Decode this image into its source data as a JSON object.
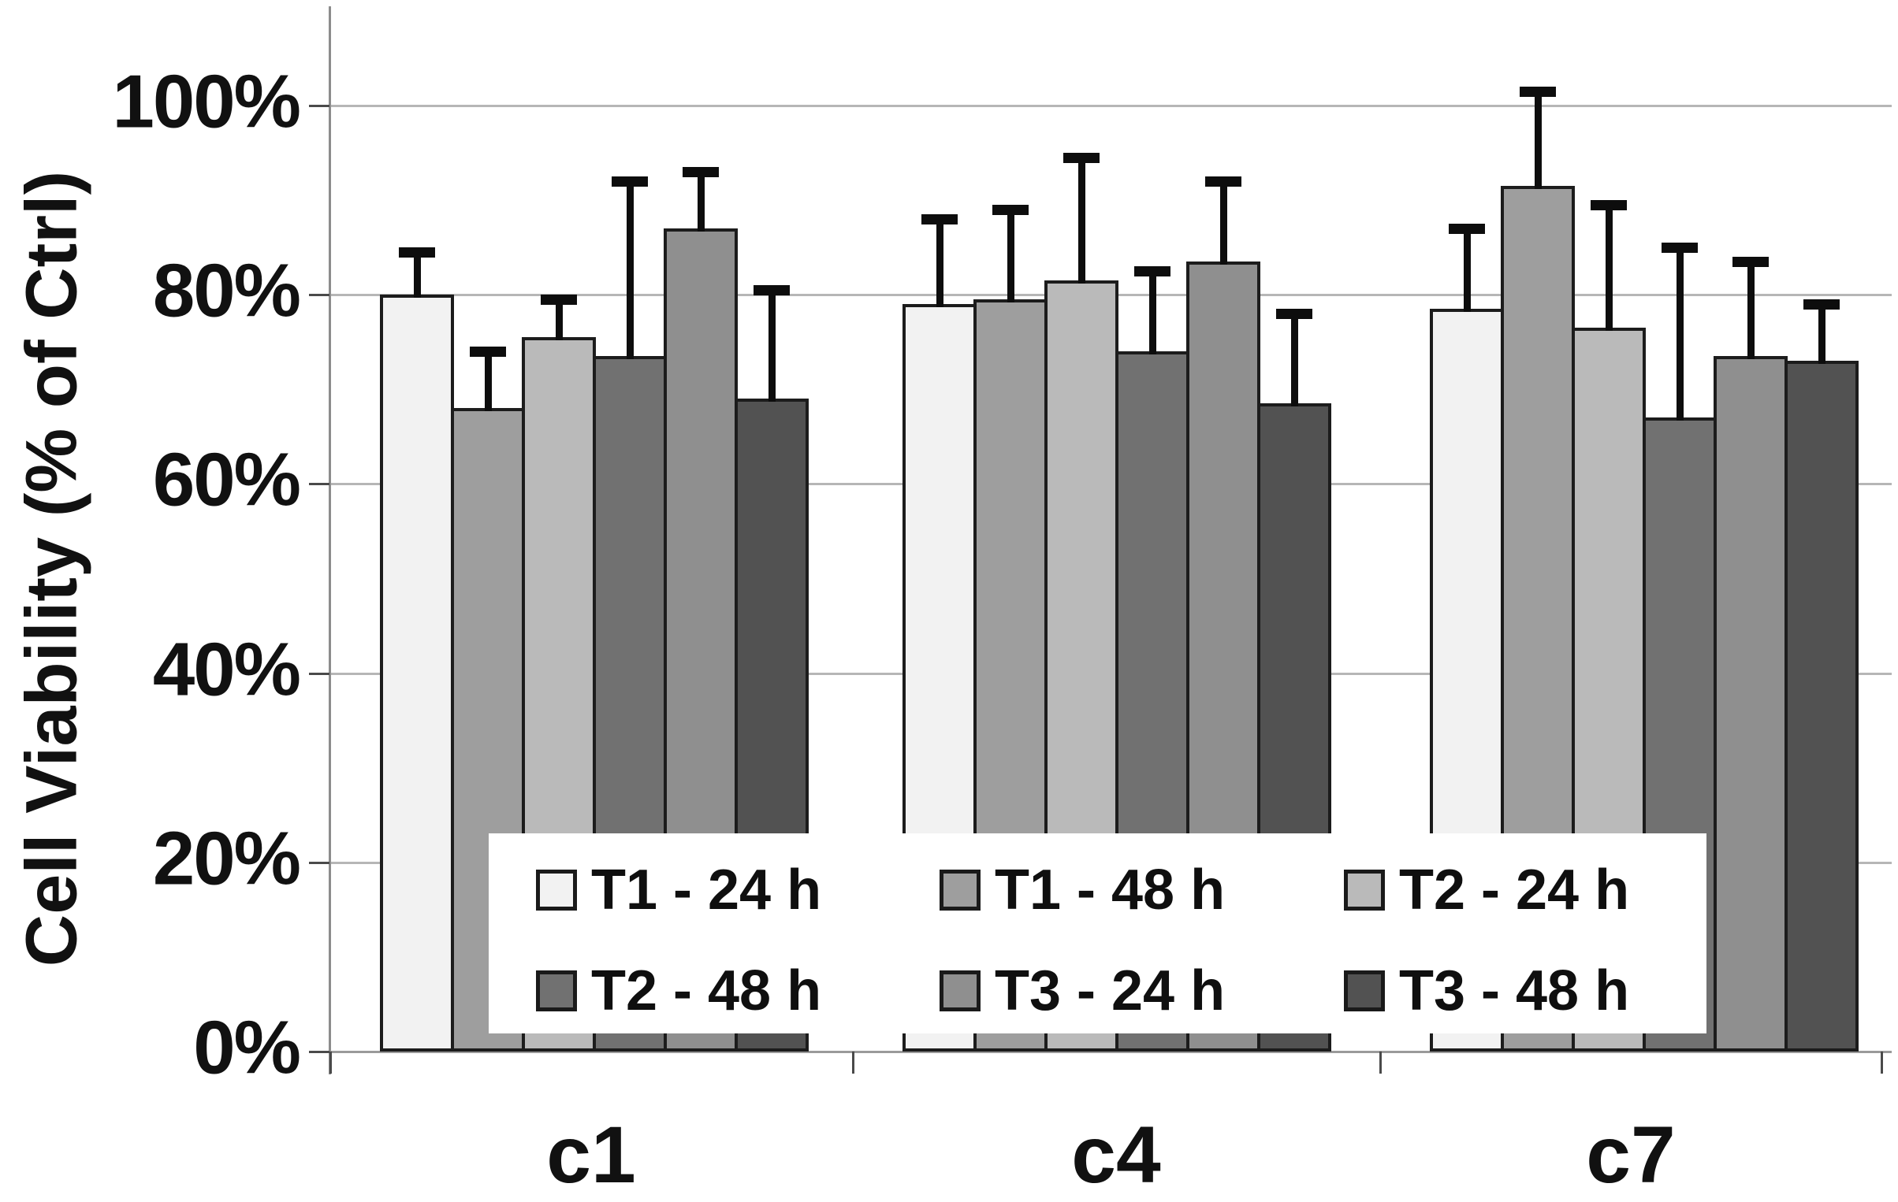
{
  "chart_data": {
    "type": "bar",
    "title": "",
    "ylabel": "Cell Viability (% of Ctrl)",
    "categories": [
      "c1",
      "c4",
      "c7"
    ],
    "y_tick_labels": [
      "100%",
      "80%",
      "60%",
      "40%",
      "20%",
      "0%"
    ],
    "y_tick_values": [
      100,
      80,
      60,
      40,
      20,
      0
    ],
    "ylim": [
      0,
      108
    ],
    "grid": true,
    "legend_position": "inside-bottom-center",
    "error_bars": "upper-only",
    "series": [
      {
        "name": "T1 - 24 h",
        "color": "#f2f2f2",
        "values": [
          80.0,
          79.0,
          78.5
        ],
        "errors": [
          4.5,
          9.0,
          8.5
        ]
      },
      {
        "name": "T1 - 48 h",
        "color": "#9e9e9e",
        "values": [
          68.0,
          79.5,
          91.5
        ],
        "errors": [
          6.0,
          9.5,
          10.0
        ]
      },
      {
        "name": "T2 - 24 h",
        "color": "#bababa",
        "values": [
          75.5,
          81.5,
          76.5
        ],
        "errors": [
          4.0,
          13.0,
          13.0
        ]
      },
      {
        "name": "T2 - 48 h",
        "color": "#717171",
        "values": [
          73.5,
          74.0,
          67.0
        ],
        "errors": [
          18.5,
          8.5,
          18.0
        ]
      },
      {
        "name": "T3 - 24 h",
        "color": "#8f8f8f",
        "values": [
          87.0,
          83.5,
          73.5
        ],
        "errors": [
          6.0,
          8.5,
          10.0
        ]
      },
      {
        "name": "T3 - 48 h",
        "color": "#525252",
        "values": [
          69.0,
          68.5,
          73.0
        ],
        "errors": [
          11.5,
          9.5,
          6.0
        ]
      }
    ]
  }
}
